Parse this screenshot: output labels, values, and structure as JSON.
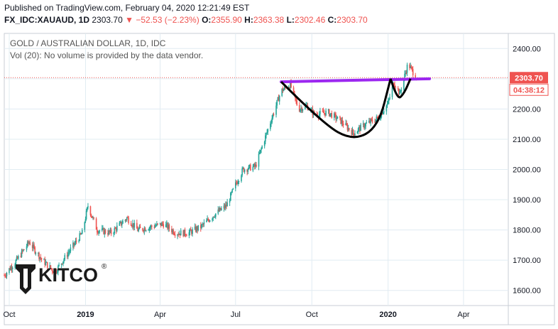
{
  "header": {
    "published": "Published on TradingView.com, February 04, 2020 12:21:49 EST",
    "symbol": "FX_IDC:XAUAUD, 1D",
    "last": "2303.70",
    "change_arrow": "▼",
    "change": "−52.53 (−2.23%)",
    "o_label": "O:",
    "o_value": "2355.90",
    "h_label": "H:",
    "h_value": "2363.38",
    "l_label": "L:",
    "l_value": "2302.46",
    "c_label": "C:",
    "c_value": "2303.70"
  },
  "legend": {
    "title": "GOLD / AUSTRALIAN DOLLAR, 1D, IDC",
    "volume_note": "Vol (20): No volume is provided by the data vendor."
  },
  "logo": {
    "text": "KITCO",
    "mark": "®"
  },
  "colors": {
    "up": "#26a69a",
    "down": "#ef5350",
    "neckline": "#9c27f0",
    "cup": "#000000",
    "price_label_bg": "#ef5350",
    "grid": "#e1ecf2"
  },
  "chart_data": {
    "type": "candlestick",
    "title": "GOLD / AUSTRALIAN DOLLAR, 1D, IDC",
    "x_range": [
      "2018-09-25",
      "2020-05-25"
    ],
    "x_ticks": [
      {
        "label": "Oct",
        "date": "2018-10-01"
      },
      {
        "label": "2019",
        "date": "2019-01-01"
      },
      {
        "label": "Apr",
        "date": "2019-04-01"
      },
      {
        "label": "Jul",
        "date": "2019-07-01"
      },
      {
        "label": "Oct",
        "date": "2019-10-01"
      },
      {
        "label": "2020",
        "date": "2020-01-01"
      },
      {
        "label": "Apr",
        "date": "2020-04-01"
      }
    ],
    "y_range": [
      1550,
      2450
    ],
    "y_ticks": [
      "1600.00",
      "1700.00",
      "1800.00",
      "1900.00",
      "2000.00",
      "2100.00",
      "2200.00",
      "2300.00",
      "2400.00"
    ],
    "last_price": "2303.70",
    "countdown": "04:38:12",
    "grid": true,
    "price_path": [
      [
        "2018-09-25",
        1650
      ],
      [
        "2018-10-10",
        1700
      ],
      [
        "2018-10-25",
        1760
      ],
      [
        "2018-11-10",
        1700
      ],
      [
        "2018-11-25",
        1660
      ],
      [
        "2018-12-10",
        1720
      ],
      [
        "2018-12-28",
        1790
      ],
      [
        "2019-01-04",
        1880
      ],
      [
        "2019-01-15",
        1800
      ],
      [
        "2019-02-01",
        1790
      ],
      [
        "2019-02-20",
        1840
      ],
      [
        "2019-03-05",
        1800
      ],
      [
        "2019-03-20",
        1810
      ],
      [
        "2019-04-05",
        1820
      ],
      [
        "2019-04-20",
        1790
      ],
      [
        "2019-05-05",
        1790
      ],
      [
        "2019-05-20",
        1810
      ],
      [
        "2019-06-05",
        1850
      ],
      [
        "2019-06-20",
        1880
      ],
      [
        "2019-07-01",
        1950
      ],
      [
        "2019-07-10",
        2000
      ],
      [
        "2019-07-25",
        2010
      ],
      [
        "2019-08-05",
        2100
      ],
      [
        "2019-08-15",
        2180
      ],
      [
        "2019-08-25",
        2260
      ],
      [
        "2019-09-05",
        2280
      ],
      [
        "2019-09-15",
        2200
      ],
      [
        "2019-09-25",
        2210
      ],
      [
        "2019-10-05",
        2180
      ],
      [
        "2019-10-20",
        2190
      ],
      [
        "2019-11-05",
        2160
      ],
      [
        "2019-11-20",
        2120
      ],
      [
        "2019-12-05",
        2150
      ],
      [
        "2019-12-20",
        2170
      ],
      [
        "2020-01-01",
        2220
      ],
      [
        "2020-01-08",
        2290
      ],
      [
        "2020-01-15",
        2250
      ],
      [
        "2020-01-25",
        2350
      ],
      [
        "2020-02-04",
        2303.7
      ]
    ],
    "annotations": {
      "neckline": {
        "start": [
          "2019-08-25",
          2290
        ],
        "end": [
          "2020-02-20",
          2300
        ]
      },
      "cup": [
        [
          "2019-08-25",
          2290
        ],
        [
          "2019-10-15",
          2150
        ],
        [
          "2019-11-20",
          2095
        ],
        [
          "2019-12-20",
          2140
        ],
        [
          "2020-01-04",
          2300
        ]
      ],
      "handle": [
        [
          "2020-01-04",
          2300
        ],
        [
          "2020-01-12",
          2230
        ],
        [
          "2020-01-20",
          2250
        ],
        [
          "2020-01-28",
          2300
        ]
      ],
      "price_line": 2303.7
    }
  }
}
